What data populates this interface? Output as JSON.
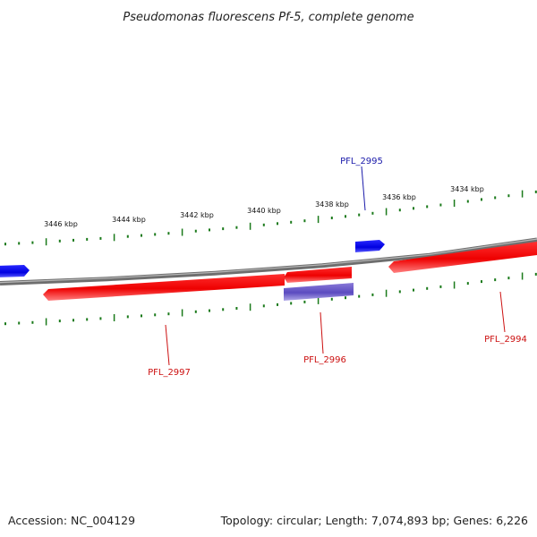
{
  "title": "Pseudomonas fluorescens Pf-5, complete genome",
  "footer": {
    "accession": "Accession: NC_004129",
    "summary": "Topology: circular; Length: 7,074,893 bp; Genes: 6,226"
  },
  "colors": {
    "forward": "#0000ee",
    "reverse": "#ee0000",
    "gene_other": "#6a5acd",
    "backbone": "#808080",
    "ticks": "#1a7a1a",
    "forward_label": "#1a1aaa",
    "reverse_label": "#cc1010"
  },
  "scale_labels": [
    {
      "text": "3446 kbp",
      "kbp": 3446
    },
    {
      "text": "3444 kbp",
      "kbp": 3444
    },
    {
      "text": "3442 kbp",
      "kbp": 3442
    },
    {
      "text": "3440 kbp",
      "kbp": 3440
    },
    {
      "text": "3438 kbp",
      "kbp": 3438
    },
    {
      "text": "3436 kbp",
      "kbp": 3436
    },
    {
      "text": "3434 kbp",
      "kbp": 3434
    }
  ],
  "gene_labels": {
    "pfl_2995": "PFL_2995",
    "pfl_2997": "PFL_2997",
    "pfl_2996": "PFL_2996",
    "pfl_2994": "PFL_2994"
  }
}
